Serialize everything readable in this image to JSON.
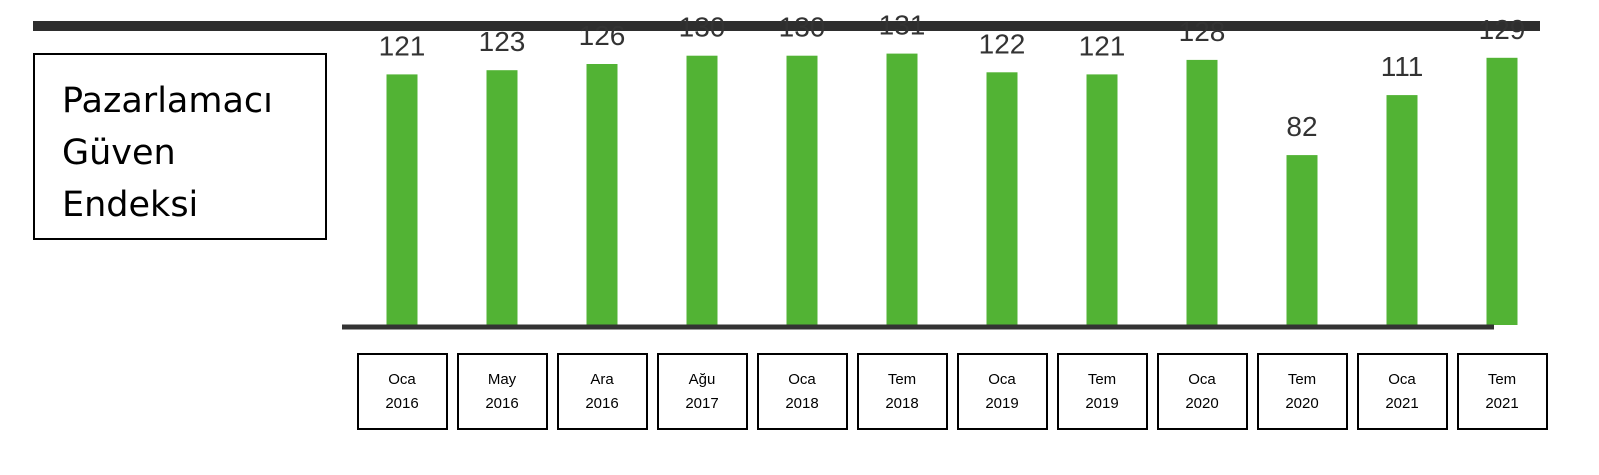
{
  "colors": {
    "bar": "#52b334",
    "rule": "#2e2e2e",
    "axis": "#333333",
    "text": "#000000",
    "value_label": "#333333"
  },
  "title": "Pazarlamacı\nGüven\nEndeksi",
  "chart_data": {
    "type": "bar",
    "title": "Pazarlamacı Güven Endeksi",
    "categories": [
      "Oca\n2016",
      "May\n2016",
      "Ara\n2016",
      "Ağu\n2017",
      "Oca\n2018",
      "Tem\n2018",
      "Oca\n2019",
      "Tem\n2019",
      "Oca\n2020",
      "Tem\n2020",
      "Oca\n2021",
      "Tem\n2021"
    ],
    "values": [
      121,
      123,
      126,
      130,
      130,
      131,
      122,
      121,
      128,
      82,
      111,
      129
    ],
    "value_labels": [
      "121",
      "123",
      "126",
      "130",
      "130",
      "131",
      "122",
      "121",
      "128",
      "82",
      "111",
      "129"
    ],
    "xlabel": "",
    "ylabel": "",
    "ylim": [
      0,
      140
    ],
    "grid": false,
    "legend": "none"
  }
}
